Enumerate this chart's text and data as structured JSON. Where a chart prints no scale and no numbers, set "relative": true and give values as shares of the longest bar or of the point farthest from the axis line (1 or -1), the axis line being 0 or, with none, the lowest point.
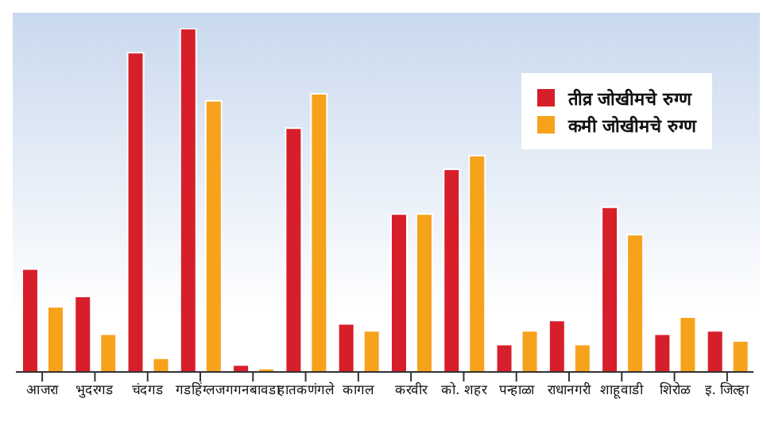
{
  "chart_data": {
    "type": "bar",
    "relative": true,
    "legend": "top right",
    "grid": false,
    "categories": [
      "आजरा",
      "भुदरगड",
      "चंदगड",
      "गडहिंग्लज",
      "गगनबावडा",
      "हातकणंगले",
      "कागल",
      "करवीर",
      "को. शहर",
      "पन्हाळा",
      "राधानगरी",
      "शाहूवाडी",
      "शिरोळ",
      "इ. जिल्हा"
    ],
    "series": [
      {
        "name": "तीव्र जोखीमचे रुग्ण",
        "color": "#d71f2b",
        "values": [
          0.3,
          0.22,
          0.93,
          1,
          0.02,
          0.71,
          0.14,
          0.46,
          0.59,
          0.08,
          0.15,
          0.48,
          0.11,
          0.12
        ]
      },
      {
        "name": "कमी जोखीमचे रुग्ण",
        "color": "#f7a21b",
        "values": [
          0.19,
          0.11,
          0.04,
          0.79,
          0.01,
          0.81,
          0.12,
          0.46,
          0.63,
          0.12,
          0.08,
          0.4,
          0.16,
          0.09
        ]
      }
    ]
  }
}
